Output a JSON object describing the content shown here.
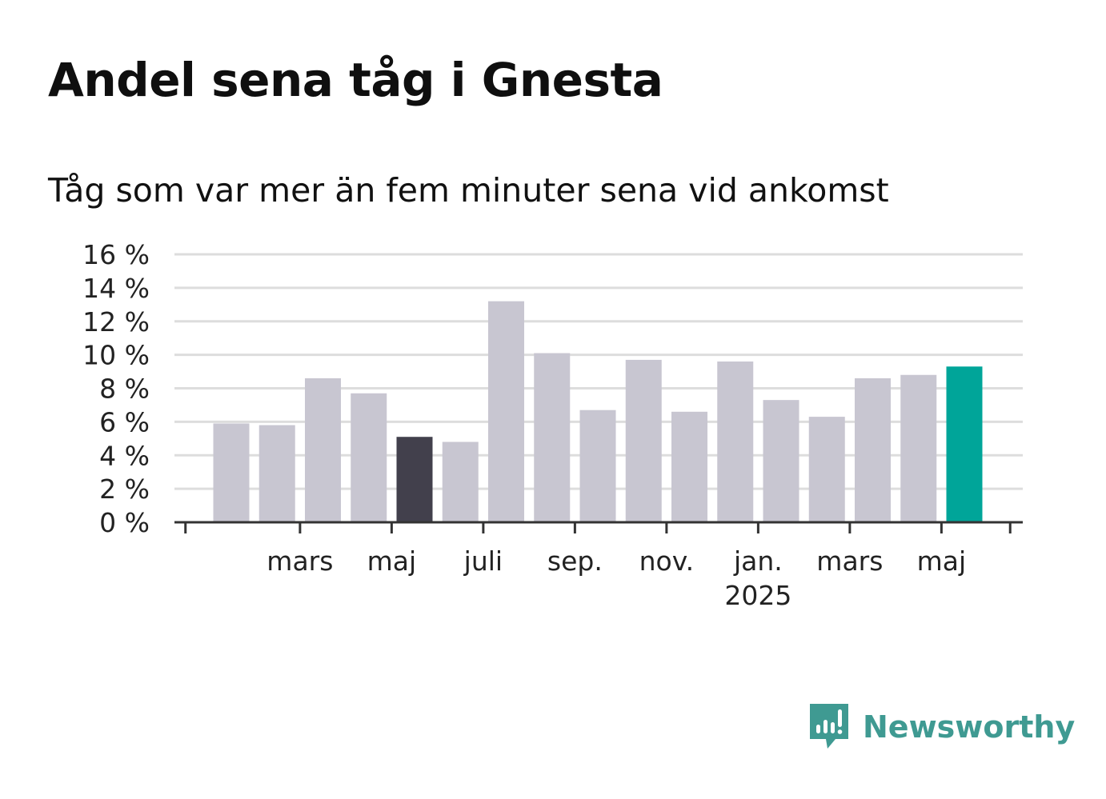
{
  "title": "Andel sena tåg i Gnesta",
  "subtitle": "Tåg som var mer än fem minuter sena vid ankomst",
  "brand": {
    "name": "Newsworthy",
    "icon": "newsworthy-logo-icon"
  },
  "colors": {
    "default": "#c8c6d1",
    "highlight_dark": "#42404c",
    "highlight_current": "#00a599",
    "grid": "#dddddd",
    "axis": "#333333"
  },
  "chart_data": {
    "type": "bar",
    "title": "Andel sena tåg i Gnesta",
    "subtitle": "Tåg som var mer än fem minuter sena vid ankomst",
    "xlabel": "",
    "ylabel": "",
    "unit": "%",
    "ylim": [
      0,
      16
    ],
    "yticks": [
      0,
      2,
      4,
      6,
      8,
      10,
      12,
      14,
      16
    ],
    "ytick_labels": [
      "0 %",
      "2 %",
      "4 %",
      "6 %",
      "8 %",
      "10 %",
      "12 %",
      "14 %",
      "16 %"
    ],
    "xtick_labels": [
      {
        "label": "mars",
        "index": 1.5
      },
      {
        "label": "maj",
        "index": 3.5
      },
      {
        "label": "juli",
        "index": 5.5
      },
      {
        "label": "sep.",
        "index": 7.5
      },
      {
        "label": "nov.",
        "index": 9.5
      },
      {
        "label": "jan.",
        "sublabel": "2025",
        "index": 11.5
      },
      {
        "label": "mars",
        "index": 13.5
      },
      {
        "label": "maj",
        "index": 15.5
      }
    ],
    "grid": true,
    "legend": "none",
    "values": [
      5.9,
      5.8,
      8.6,
      7.7,
      5.1,
      4.8,
      13.2,
      10.1,
      6.7,
      9.7,
      6.6,
      9.6,
      7.3,
      6.3,
      8.6,
      8.8,
      9.3
    ],
    "highlights": {
      "4": "dark",
      "16": "current"
    }
  }
}
